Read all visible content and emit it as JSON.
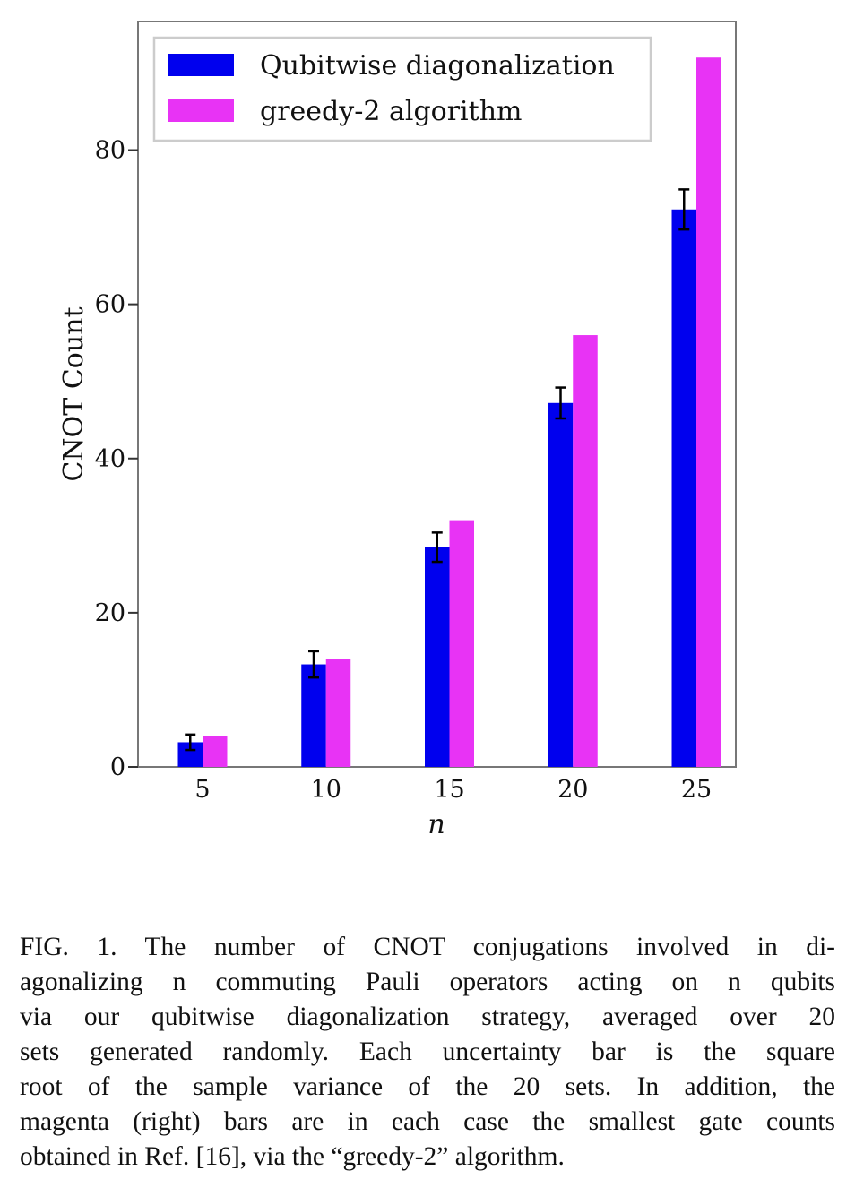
{
  "chart_data": {
    "type": "bar",
    "categories": [
      "5",
      "10",
      "15",
      "20",
      "25"
    ],
    "series": [
      {
        "name": "Qubitwise diagonalization",
        "values": [
          3.2,
          13.3,
          28.5,
          47.2,
          72.3
        ],
        "errors": [
          1.0,
          1.7,
          1.9,
          2.0,
          2.6
        ],
        "color": "#0000ee"
      },
      {
        "name": "greedy-2 algorithm",
        "values": [
          4,
          14,
          32,
          56,
          92
        ],
        "color": "#e833f5"
      }
    ],
    "xlabel": "n",
    "ylabel": "CNOT Count",
    "ylim": [
      0,
      97
    ],
    "yticks": [
      0,
      20,
      40,
      60,
      80
    ],
    "legend": "top-left"
  },
  "caption": {
    "lines": [
      "FIG. 1.  The number of CNOT conjugations involved in di-",
      "agonalizing n commuting Pauli operators acting on n qubits",
      "via our qubitwise diagonalization strategy, averaged over 20",
      "sets generated randomly. Each uncertainty bar is the square",
      "root of the sample variance of the 20 sets.  In addition, the",
      "magenta (right) bars are in each case the smallest gate counts",
      "obtained in Ref. [16], via the “greedy-2” algorithm."
    ]
  }
}
